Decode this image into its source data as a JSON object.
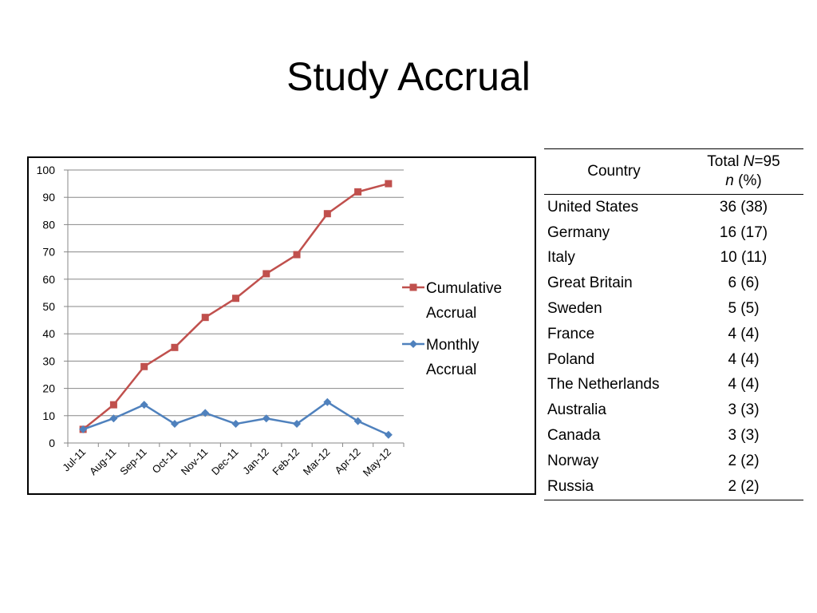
{
  "slide": {
    "title": "Study Accrual"
  },
  "table": {
    "header": {
      "country": "Country",
      "total_prefix": "Total ",
      "total_n_symbol": "N",
      "total_suffix": "=95",
      "pct_n_symbol": "n",
      "pct_suffix": " (%)"
    },
    "rows": [
      {
        "country": "United States",
        "value": "36 (38)"
      },
      {
        "country": "Germany",
        "value": "16 (17)"
      },
      {
        "country": "Italy",
        "value": "10 (11)"
      },
      {
        "country": "Great Britain",
        "value": "6 (6)"
      },
      {
        "country": "Sweden",
        "value": "5 (5)"
      },
      {
        "country": "France",
        "value": "4 (4)"
      },
      {
        "country": "Poland",
        "value": "4 (4)"
      },
      {
        "country": "The Netherlands",
        "value": "4 (4)"
      },
      {
        "country": "Australia",
        "value": "3 (3)"
      },
      {
        "country": "Canada",
        "value": "3 (3)"
      },
      {
        "country": "Norway",
        "value": "2 (2)"
      },
      {
        "country": "Russia",
        "value": "2 (2)"
      }
    ]
  },
  "chart_data": {
    "type": "line",
    "title": "",
    "xlabel": "",
    "ylabel": "",
    "categories": [
      "Jul-11",
      "Aug-11",
      "Sep-11",
      "Oct-11",
      "Nov-11",
      "Dec-11",
      "Jan-12",
      "Feb-12",
      "Mar-12",
      "Apr-12",
      "May-12"
    ],
    "ylim": [
      0,
      100
    ],
    "yticks": [
      0,
      10,
      20,
      30,
      40,
      50,
      60,
      70,
      80,
      90,
      100
    ],
    "grid": true,
    "legend_position": "right",
    "series": [
      {
        "name": "Cumulative Accrual",
        "legend_lines": [
          "Cumulative",
          "Accrual"
        ],
        "marker": "square",
        "color": "#c0504d",
        "values": [
          5,
          14,
          28,
          35,
          46,
          53,
          62,
          69,
          84,
          92,
          95
        ]
      },
      {
        "name": "Monthly Accrual",
        "legend_lines": [
          "Monthly",
          "Accrual"
        ],
        "marker": "diamond",
        "color": "#4f81bd",
        "values": [
          5,
          9,
          14,
          7,
          11,
          7,
          9,
          7,
          15,
          8,
          3
        ]
      }
    ]
  }
}
